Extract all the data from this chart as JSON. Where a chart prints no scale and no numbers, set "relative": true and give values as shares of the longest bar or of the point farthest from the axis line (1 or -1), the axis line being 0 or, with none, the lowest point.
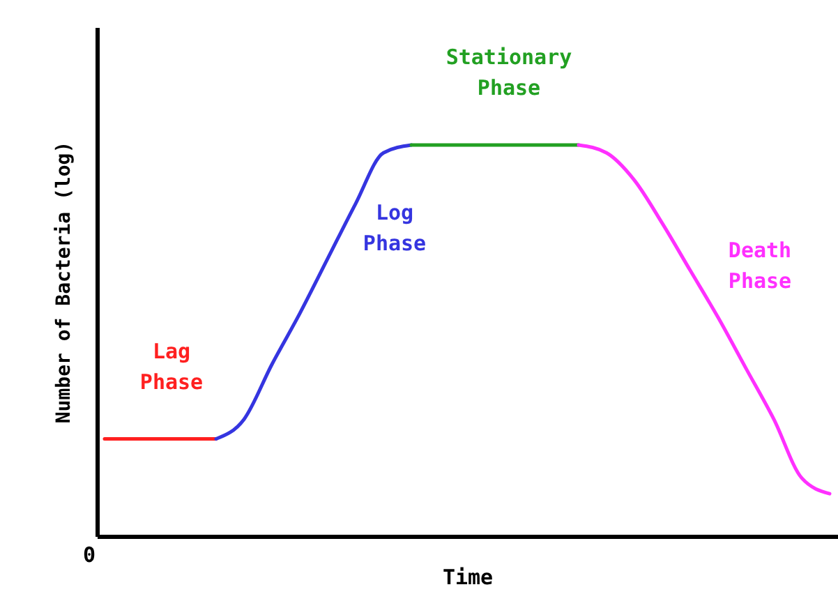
{
  "chart_data": {
    "type": "line",
    "relative": true,
    "xlabel": "Time",
    "ylabel": "Number of Bacteria (log)",
    "annotations": [
      "0"
    ],
    "categories": [
      null,
      null,
      null,
      null,
      null,
      null,
      null,
      null,
      null,
      null,
      null,
      null,
      null,
      null,
      null,
      null,
      null,
      null,
      null,
      null,
      null,
      null,
      null,
      null,
      null,
      null,
      null
    ],
    "series": [
      {
        "name": "Lag Phase",
        "color": "#ff2020",
        "values": [
          0.25,
          0.25,
          0.25,
          0.25,
          0.25,
          null,
          null,
          null,
          null,
          null,
          null,
          null,
          null,
          null,
          null,
          null,
          null,
          null,
          null,
          null,
          null,
          null,
          null,
          null,
          null,
          null,
          null
        ]
      },
      {
        "name": "Log Phase",
        "color": "#3535e0",
        "values": [
          null,
          null,
          null,
          null,
          0.25,
          0.3,
          0.44,
          0.57,
          0.71,
          0.85,
          0.98,
          1,
          null,
          null,
          null,
          null,
          null,
          null,
          null,
          null,
          null,
          null,
          null,
          null,
          null,
          null,
          null
        ]
      },
      {
        "name": "Stationary Phase",
        "color": "#22a022",
        "values": [
          null,
          null,
          null,
          null,
          null,
          null,
          null,
          null,
          null,
          null,
          null,
          1,
          1,
          1,
          1,
          1,
          1,
          1,
          null,
          null,
          null,
          null,
          null,
          null,
          null,
          null,
          null
        ]
      },
      {
        "name": "Death Phase",
        "color": "#ff30ff",
        "values": [
          null,
          null,
          null,
          null,
          null,
          null,
          null,
          null,
          null,
          null,
          null,
          null,
          null,
          null,
          null,
          null,
          null,
          1,
          0.98,
          0.91,
          0.8,
          0.68,
          0.56,
          0.43,
          0.3,
          0.15,
          0.11
        ]
      }
    ]
  }
}
